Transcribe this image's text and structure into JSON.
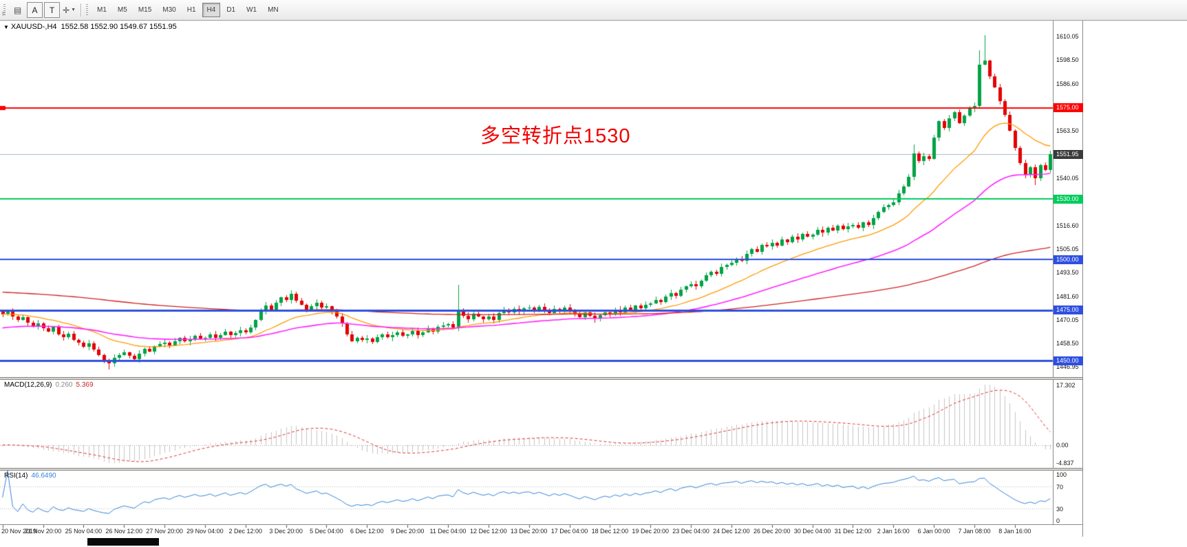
{
  "toolbar": {
    "hint": "F",
    "buttons": {
      "a": "A",
      "t": "T"
    },
    "timeframes": [
      "M1",
      "M5",
      "M15",
      "M30",
      "H1",
      "H4",
      "D1",
      "W1",
      "MN"
    ],
    "active_timeframe": "H4"
  },
  "chart_data": {
    "type": "candlestick",
    "symbol": "XAUUSD",
    "timeframe": "H4",
    "title": "XAUUSD-,H4",
    "ohlc_display": "1552.58 1552.90 1549.67 1551.95",
    "annotation": {
      "text": "多空转折点1530",
      "color": "#F00100"
    },
    "price_scale": {
      "min": 1442,
      "max": 1618
    },
    "price_axis_labels": [
      "1610.05",
      "1598.50",
      "1586.60",
      "1563.50",
      "1540.05",
      "1528.50",
      "1516.60",
      "1505.05",
      "1493.50",
      "1481.60",
      "1470.05",
      "1458.50",
      "1446.95"
    ],
    "x_labels": [
      "20 Nov 2019",
      "21 Nov 20:00",
      "25 Nov 04:00",
      "26 Nov 12:00",
      "27 Nov 20:00",
      "29 Nov 04:00",
      "2 Dec 12:00",
      "3 Dec 20:00",
      "5 Dec 04:00",
      "6 Dec 12:00",
      "9 Dec 20:00",
      "11 Dec 04:00",
      "12 Dec 12:00",
      "13 Dec 20:00",
      "17 Dec 04:00",
      "18 Dec 12:00",
      "19 Dec 20:00",
      "23 Dec 04:00",
      "24 Dec 12:00",
      "26 Dec 20:00",
      "30 Dec 04:00",
      "31 Dec 12:00",
      "2 Jan 16:00",
      "6 Jan 00:00",
      "7 Jan 08:00",
      "8 Jan 16:00"
    ],
    "horizontal_lines": [
      {
        "price": 1575.0,
        "label": "1575.00",
        "color": "#ff0000",
        "width": 2,
        "anchor": true
      },
      {
        "price": 1530.0,
        "label": "1530.00",
        "color": "#00cc5c",
        "width": 2,
        "anchor": false
      },
      {
        "price": 1500.0,
        "label": "1500.00",
        "color": "#2e4fe0",
        "width": 2,
        "anchor": false
      },
      {
        "price": 1475.0,
        "label": "1475.00",
        "color": "#2e4fe0",
        "width": 3,
        "anchor": false
      },
      {
        "price": 1450.0,
        "label": "1450.00",
        "color": "#2e4fe0",
        "width": 3,
        "anchor": false
      }
    ],
    "bid_line": {
      "price": 1551.95,
      "label": "1551.95",
      "tag_color": "#3a3a3a",
      "line_color": "#a3bac4"
    },
    "candles": {
      "first_open": 1474.4,
      "default_wick": 1.0,
      "up_color": "#00a344",
      "down_color": "#e30000",
      "closes": [
        1473.0,
        1474.2,
        1471.8,
        1470.3,
        1471.5,
        1468.8,
        1467.2,
        1468.4,
        1466.0,
        1464.5,
        1466.8,
        1463.2,
        1461.8,
        1463.5,
        1460.4,
        1458.9,
        1457.0,
        1458.8,
        1455.6,
        1452.9,
        1450.2,
        1448.8,
        1451.5,
        1453.0,
        1454.2,
        1452.6,
        1450.8,
        1453.4,
        1455.8,
        1454.6,
        1457.2,
        1458.4,
        1459.0,
        1457.6,
        1459.8,
        1461.2,
        1459.6,
        1460.8,
        1462.4,
        1460.9,
        1461.5,
        1463.0,
        1461.2,
        1462.8,
        1464.4,
        1462.6,
        1463.8,
        1465.2,
        1464.0,
        1466.5,
        1470.2,
        1474.8,
        1477.5,
        1475.2,
        1478.6,
        1481.4,
        1480.0,
        1483.2,
        1479.6,
        1477.8,
        1475.4,
        1477.0,
        1478.8,
        1476.2,
        1477.0,
        1474.6,
        1471.8,
        1468.4,
        1463.2,
        1459.8,
        1461.4,
        1460.2,
        1461.0,
        1459.4,
        1461.8,
        1463.2,
        1461.6,
        1462.8,
        1464.2,
        1462.4,
        1463.0,
        1464.8,
        1462.6,
        1464.2,
        1466.0,
        1464.4,
        1466.8,
        1467.6,
        1468.0,
        1466.4,
        1475.0,
        1472.2,
        1470.6,
        1473.4,
        1471.8,
        1470.4,
        1472.0,
        1470.2,
        1473.6,
        1475.4,
        1473.8,
        1475.6,
        1474.2,
        1476.0,
        1476.4,
        1474.8,
        1476.6,
        1475.2,
        1473.6,
        1475.8,
        1474.4,
        1476.2,
        1475.0,
        1473.2,
        1471.6,
        1473.8,
        1472.4,
        1470.8,
        1472.6,
        1474.0,
        1473.0,
        1475.2,
        1474.0,
        1476.4,
        1475.0,
        1477.2,
        1476.0,
        1477.8,
        1478.4,
        1480.2,
        1479.0,
        1481.6,
        1483.4,
        1482.0,
        1485.2,
        1486.8,
        1488.0,
        1487.0,
        1489.6,
        1492.4,
        1494.0,
        1493.0,
        1496.2,
        1497.4,
        1498.4,
        1500.6,
        1499.4,
        1502.8,
        1505.2,
        1504.0,
        1507.4,
        1506.6,
        1508.2,
        1507.0,
        1509.8,
        1508.6,
        1511.2,
        1510.0,
        1512.6,
        1511.4,
        1512.4,
        1514.8,
        1513.2,
        1515.6,
        1514.4,
        1516.8,
        1515.2,
        1516.4,
        1517.2,
        1515.6,
        1518.4,
        1517.0,
        1520.6,
        1523.4,
        1525.8,
        1527.0,
        1528.4,
        1532.6,
        1536.2,
        1540.8,
        1552.4,
        1548.6,
        1551.2,
        1549.8,
        1560.2,
        1568.4,
        1565.0,
        1569.6,
        1572.8,
        1567.4,
        1571.2,
        1574.6,
        1576.0,
        1596.4,
        1598.2,
        1590.6,
        1585.2,
        1578.4,
        1571.6,
        1563.8,
        1555.2,
        1547.6,
        1541.8,
        1545.6,
        1540.2,
        1546.8,
        1544.4,
        1551.95
      ],
      "special_wicks": {
        "21": {
          "low": 1445.9
        },
        "90": {
          "high": 1487.6
        },
        "180": {
          "high": 1557.0
        },
        "193": {
          "high": 1603.5
        },
        "194": {
          "high": 1611.0
        },
        "204": {
          "low": 1536.8
        }
      }
    },
    "moving_averages": [
      {
        "label": "fast",
        "period": 21,
        "seed": null,
        "color": "#ff9900",
        "width": 1.3
      },
      {
        "label": "mid",
        "period": 55,
        "seed": 1466,
        "color": "#ff22ff",
        "width": 1.6
      },
      {
        "label": "slow",
        "period": 200,
        "seed": 1484,
        "color": "#d02020",
        "width": 1.3
      }
    ],
    "indicators": {
      "macd": {
        "label": "MACD(12,26,9)",
        "display_main": "0.260",
        "display_signal": "5.369",
        "fast": 12,
        "slow": 26,
        "signal": 9,
        "axis_labels": [
          "17.302",
          "0.00",
          "-4.837"
        ],
        "hist_color": "#c4c4c4",
        "signal_color": "#e03030"
      },
      "rsi": {
        "label": "RSI(14)",
        "display_value": "46.6490",
        "period": 14,
        "axis_labels": [
          "100",
          "70",
          "30",
          "0"
        ],
        "levels": [
          70,
          30
        ],
        "color": "#3583d6"
      }
    }
  }
}
